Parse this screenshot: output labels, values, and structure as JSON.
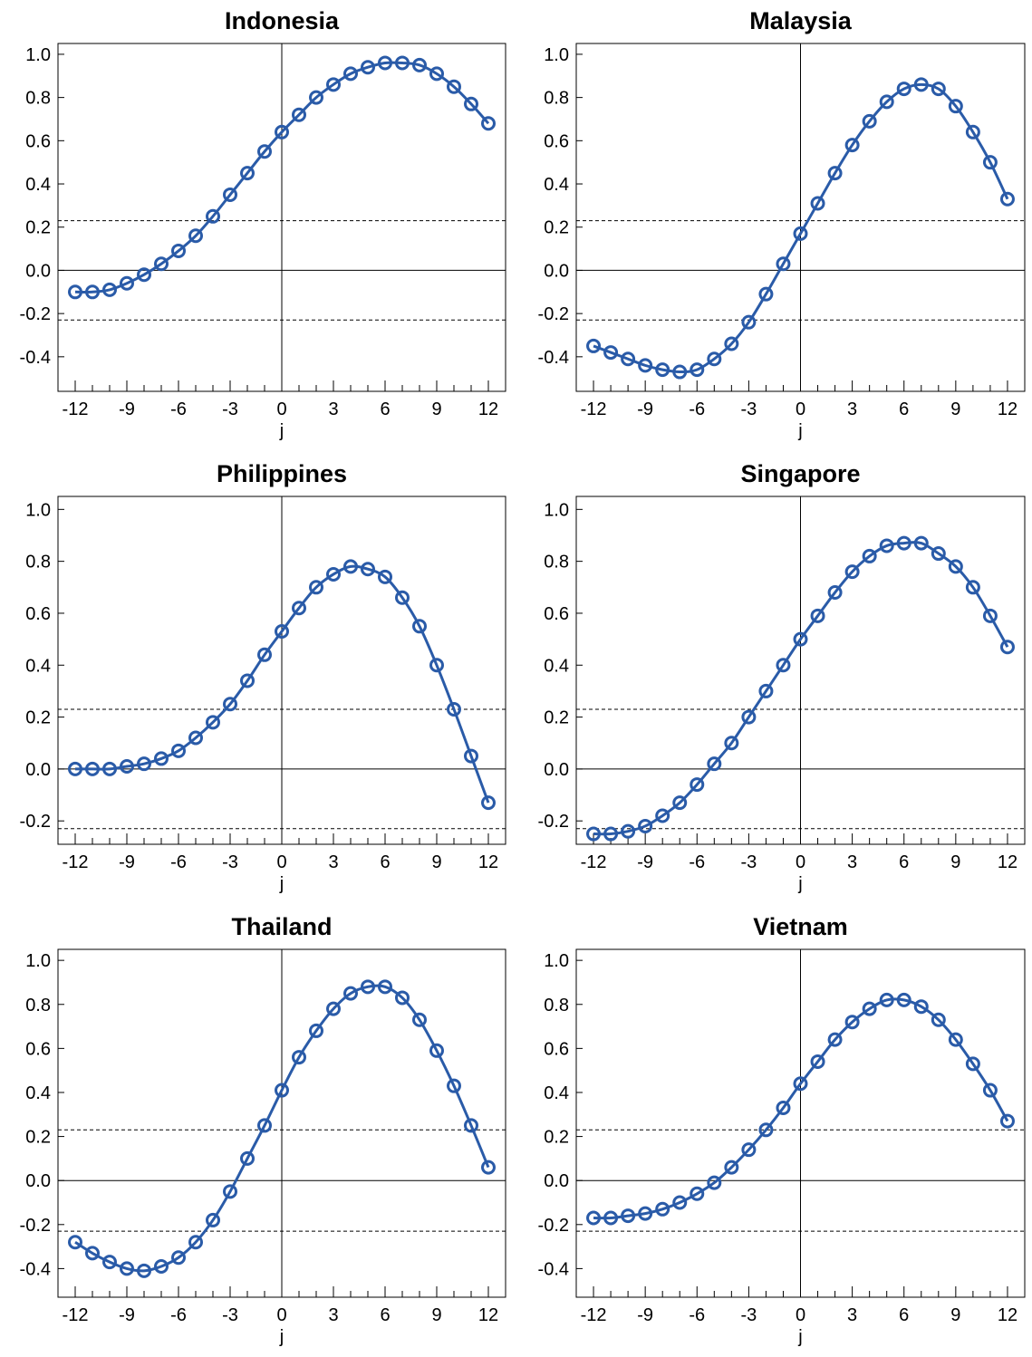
{
  "figure": {
    "style": {
      "line_color": "#2a5ba8",
      "axis_color": "#000000",
      "threshold_color": "#000000",
      "background": "#ffffff"
    }
  },
  "chart_data": [
    {
      "type": "line",
      "title": "Indonesia",
      "xlabel": "j",
      "ylabel": "",
      "xlim": [
        -13,
        13
      ],
      "ylim": [
        -0.56,
        1.05
      ],
      "xticks": [
        -12,
        -9,
        -6,
        -3,
        0,
        3,
        6,
        9,
        12
      ],
      "xtick_labels": [
        "-12",
        "-9",
        "-6",
        "-3",
        "0",
        "3",
        "6",
        "9",
        "12"
      ],
      "yticks": [
        -0.4,
        -0.2,
        0.0,
        0.2,
        0.4,
        0.6,
        0.8,
        1.0
      ],
      "ytick_labels": [
        "-0.4",
        "-0.2",
        "0.0",
        "0.2",
        "0.4",
        "0.6",
        "0.8",
        "1.0"
      ],
      "confidence_band": [
        -0.23,
        0.23
      ],
      "x": [
        -12,
        -11,
        -10,
        -9,
        -8,
        -7,
        -6,
        -5,
        -4,
        -3,
        -2,
        -1,
        0,
        1,
        2,
        3,
        4,
        5,
        6,
        7,
        8,
        9,
        10,
        11,
        12
      ],
      "values": [
        -0.1,
        -0.1,
        -0.09,
        -0.06,
        -0.02,
        0.03,
        0.09,
        0.16,
        0.25,
        0.35,
        0.45,
        0.55,
        0.64,
        0.72,
        0.8,
        0.86,
        0.91,
        0.94,
        0.96,
        0.96,
        0.95,
        0.91,
        0.85,
        0.77,
        0.68
      ]
    },
    {
      "type": "line",
      "title": "Malaysia",
      "xlabel": "j",
      "ylabel": "",
      "xlim": [
        -13,
        13
      ],
      "ylim": [
        -0.56,
        1.05
      ],
      "xticks": [
        -12,
        -9,
        -6,
        -3,
        0,
        3,
        6,
        9,
        12
      ],
      "xtick_labels": [
        "-12",
        "-9",
        "-6",
        "-3",
        "0",
        "3",
        "6",
        "9",
        "12"
      ],
      "yticks": [
        -0.4,
        -0.2,
        0.0,
        0.2,
        0.4,
        0.6,
        0.8,
        1.0
      ],
      "ytick_labels": [
        "-0.4",
        "-0.2",
        "0.0",
        "0.2",
        "0.4",
        "0.6",
        "0.8",
        "1.0"
      ],
      "confidence_band": [
        -0.23,
        0.23
      ],
      "x": [
        -12,
        -11,
        -10,
        -9,
        -8,
        -7,
        -6,
        -5,
        -4,
        -3,
        -2,
        -1,
        0,
        1,
        2,
        3,
        4,
        5,
        6,
        7,
        8,
        9,
        10,
        11,
        12
      ],
      "values": [
        -0.35,
        -0.38,
        -0.41,
        -0.44,
        -0.46,
        -0.47,
        -0.46,
        -0.41,
        -0.34,
        -0.24,
        -0.11,
        0.03,
        0.17,
        0.31,
        0.45,
        0.58,
        0.69,
        0.78,
        0.84,
        0.86,
        0.84,
        0.76,
        0.64,
        0.5,
        0.33
      ]
    },
    {
      "type": "line",
      "title": "Philippines",
      "xlabel": "j",
      "ylabel": "",
      "xlim": [
        -13,
        13
      ],
      "ylim": [
        -0.29,
        1.05
      ],
      "xticks": [
        -12,
        -9,
        -6,
        -3,
        0,
        3,
        6,
        9,
        12
      ],
      "xtick_labels": [
        "-12",
        "-9",
        "-6",
        "-3",
        "0",
        "3",
        "6",
        "9",
        "12"
      ],
      "yticks": [
        -0.2,
        0.0,
        0.2,
        0.4,
        0.6,
        0.8,
        1.0
      ],
      "ytick_labels": [
        "-0.2",
        "0.0",
        "0.2",
        "0.4",
        "0.6",
        "0.8",
        "1.0"
      ],
      "confidence_band": [
        -0.23,
        0.23
      ],
      "x": [
        -12,
        -11,
        -10,
        -9,
        -8,
        -7,
        -6,
        -5,
        -4,
        -3,
        -2,
        -1,
        0,
        1,
        2,
        3,
        4,
        5,
        6,
        7,
        8,
        9,
        10,
        11,
        12
      ],
      "values": [
        0.0,
        0.0,
        0.0,
        0.01,
        0.02,
        0.04,
        0.07,
        0.12,
        0.18,
        0.25,
        0.34,
        0.44,
        0.53,
        0.62,
        0.7,
        0.75,
        0.78,
        0.77,
        0.74,
        0.66,
        0.55,
        0.4,
        0.23,
        0.05,
        -0.13
      ]
    },
    {
      "type": "line",
      "title": "Singapore",
      "xlabel": "j",
      "ylabel": "",
      "xlim": [
        -13,
        13
      ],
      "ylim": [
        -0.29,
        1.05
      ],
      "xticks": [
        -12,
        -9,
        -6,
        -3,
        0,
        3,
        6,
        9,
        12
      ],
      "xtick_labels": [
        "-12",
        "-9",
        "-6",
        "-3",
        "0",
        "3",
        "6",
        "9",
        "12"
      ],
      "yticks": [
        -0.2,
        0.0,
        0.2,
        0.4,
        0.6,
        0.8,
        1.0
      ],
      "ytick_labels": [
        "-0.2",
        "0.0",
        "0.2",
        "0.4",
        "0.6",
        "0.8",
        "1.0"
      ],
      "confidence_band": [
        -0.23,
        0.23
      ],
      "x": [
        -12,
        -11,
        -10,
        -9,
        -8,
        -7,
        -6,
        -5,
        -4,
        -3,
        -2,
        -1,
        0,
        1,
        2,
        3,
        4,
        5,
        6,
        7,
        8,
        9,
        10,
        11,
        12
      ],
      "values": [
        -0.25,
        -0.25,
        -0.24,
        -0.22,
        -0.18,
        -0.13,
        -0.06,
        0.02,
        0.1,
        0.2,
        0.3,
        0.4,
        0.5,
        0.59,
        0.68,
        0.76,
        0.82,
        0.86,
        0.87,
        0.87,
        0.83,
        0.78,
        0.7,
        0.59,
        0.47
      ]
    },
    {
      "type": "line",
      "title": "Thailand",
      "xlabel": "j",
      "ylabel": "",
      "xlim": [
        -13,
        13
      ],
      "ylim": [
        -0.53,
        1.05
      ],
      "xticks": [
        -12,
        -9,
        -6,
        -3,
        0,
        3,
        6,
        9,
        12
      ],
      "xtick_labels": [
        "-12",
        "-9",
        "-6",
        "-3",
        "0",
        "3",
        "6",
        "9",
        "12"
      ],
      "yticks": [
        -0.4,
        -0.2,
        0.0,
        0.2,
        0.4,
        0.6,
        0.8,
        1.0
      ],
      "ytick_labels": [
        "-0.4",
        "-0.2",
        "0.0",
        "0.2",
        "0.4",
        "0.6",
        "0.8",
        "1.0"
      ],
      "confidence_band": [
        -0.23,
        0.23
      ],
      "x": [
        -12,
        -11,
        -10,
        -9,
        -8,
        -7,
        -6,
        -5,
        -4,
        -3,
        -2,
        -1,
        0,
        1,
        2,
        3,
        4,
        5,
        6,
        7,
        8,
        9,
        10,
        11,
        12
      ],
      "values": [
        -0.28,
        -0.33,
        -0.37,
        -0.4,
        -0.41,
        -0.39,
        -0.35,
        -0.28,
        -0.18,
        -0.05,
        0.1,
        0.25,
        0.41,
        0.56,
        0.68,
        0.78,
        0.85,
        0.88,
        0.88,
        0.83,
        0.73,
        0.59,
        0.43,
        0.25,
        0.06
      ]
    },
    {
      "type": "line",
      "title": "Vietnam",
      "xlabel": "j",
      "ylabel": "",
      "xlim": [
        -13,
        13
      ],
      "ylim": [
        -0.53,
        1.05
      ],
      "xticks": [
        -12,
        -9,
        -6,
        -3,
        0,
        3,
        6,
        9,
        12
      ],
      "xtick_labels": [
        "-12",
        "-9",
        "-6",
        "-3",
        "0",
        "3",
        "6",
        "9",
        "12"
      ],
      "yticks": [
        -0.4,
        -0.2,
        0.0,
        0.2,
        0.4,
        0.6,
        0.8,
        1.0
      ],
      "ytick_labels": [
        "-0.4",
        "-0.2",
        "0.0",
        "0.2",
        "0.4",
        "0.6",
        "0.8",
        "1.0"
      ],
      "confidence_band": [
        -0.23,
        0.23
      ],
      "x": [
        -12,
        -11,
        -10,
        -9,
        -8,
        -7,
        -6,
        -5,
        -4,
        -3,
        -2,
        -1,
        0,
        1,
        2,
        3,
        4,
        5,
        6,
        7,
        8,
        9,
        10,
        11,
        12
      ],
      "values": [
        -0.17,
        -0.17,
        -0.16,
        -0.15,
        -0.13,
        -0.1,
        -0.06,
        -0.01,
        0.06,
        0.14,
        0.23,
        0.33,
        0.44,
        0.54,
        0.64,
        0.72,
        0.78,
        0.82,
        0.82,
        0.79,
        0.73,
        0.64,
        0.53,
        0.41,
        0.27
      ]
    }
  ]
}
